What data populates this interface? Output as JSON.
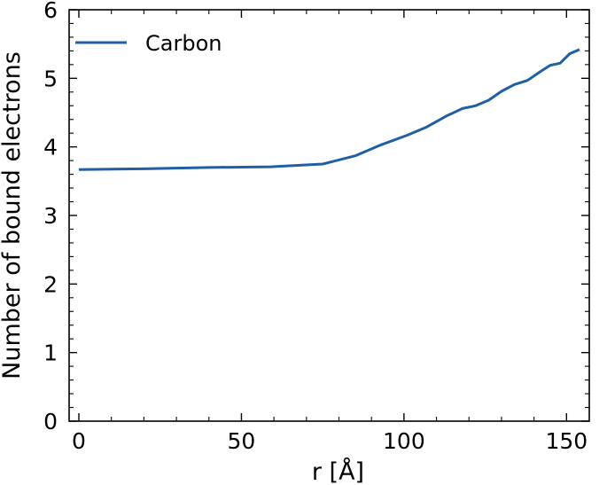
{
  "chart_data": {
    "type": "line",
    "xlabel": "r [Å]",
    "ylabel": "Number of bound electrons",
    "xlim": [
      -3,
      157
    ],
    "ylim": [
      0,
      6
    ],
    "xticks": [
      0,
      50,
      100,
      150
    ],
    "yticks": [
      0,
      1,
      2,
      3,
      4,
      5,
      6
    ],
    "grid": false,
    "legend_position": "top-left",
    "series": [
      {
        "name": "Carbon",
        "color": "#1f5fa3",
        "x": [
          0,
          20,
          40,
          59,
          75,
          85,
          93,
          101,
          107,
          113,
          118,
          122,
          126,
          130,
          134,
          138,
          142,
          145,
          148,
          151,
          154
        ],
        "y": [
          3.67,
          3.68,
          3.7,
          3.71,
          3.75,
          3.87,
          4.03,
          4.17,
          4.29,
          4.45,
          4.56,
          4.6,
          4.68,
          4.81,
          4.91,
          4.97,
          5.1,
          5.19,
          5.22,
          5.36,
          5.42
        ]
      }
    ]
  }
}
